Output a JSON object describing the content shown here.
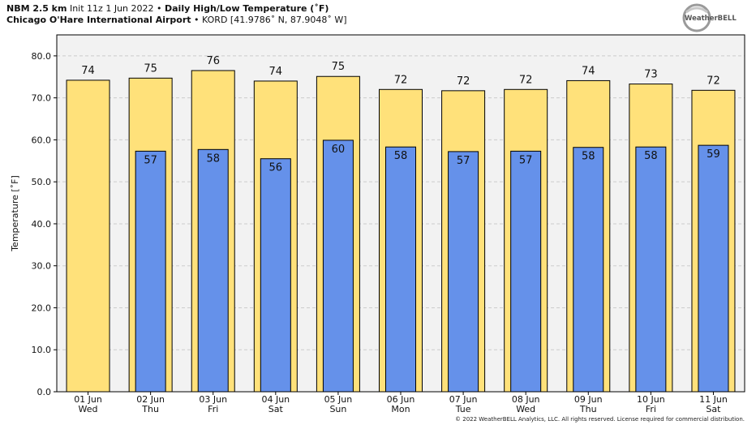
{
  "header": {
    "model": "NBM 2.5 km",
    "init": "Init 11z 1 Jun 2022",
    "bullet": "•",
    "product": "Daily High/Low Temperature (˚F)",
    "station": "Chicago O'Hare International Airport",
    "station_code": "KORD [41.9786˚ N, 87.9048˚ W]"
  },
  "logo": {
    "text": "WeatherBELL"
  },
  "copyright": "© 2022 WeatherBELL Analytics, LLC. All rights reserved. License required for commercial distribution.",
  "colors": {
    "high": "#FFE17A",
    "low": "#6591EA",
    "plot_bg": "#F2F2F2",
    "grid": "#CCCCCC"
  },
  "chart_data": {
    "type": "bar",
    "ylabel": "Temperature [˚F]",
    "ylim": [
      0,
      85
    ],
    "yticks": [
      "0.0",
      "10.0",
      "20.0",
      "30.0",
      "40.0",
      "50.0",
      "60.0",
      "70.0",
      "80.0"
    ],
    "grid": true,
    "categories": [
      [
        "01 Jun",
        "Wed"
      ],
      [
        "02 Jun",
        "Thu"
      ],
      [
        "03 Jun",
        "Fri"
      ],
      [
        "04 Jun",
        "Sat"
      ],
      [
        "05 Jun",
        "Sun"
      ],
      [
        "06 Jun",
        "Mon"
      ],
      [
        "07 Jun",
        "Tue"
      ],
      [
        "08 Jun",
        "Wed"
      ],
      [
        "09 Jun",
        "Thu"
      ],
      [
        "10 Jun",
        "Fri"
      ],
      [
        "11 Jun",
        "Sat"
      ]
    ],
    "high": [
      74.2,
      74.7,
      76.5,
      74.0,
      75.1,
      72.0,
      71.7,
      72.0,
      74.1,
      73.3,
      71.8
    ],
    "high_labels": [
      "74",
      "75",
      "76",
      "74",
      "75",
      "72",
      "72",
      "72",
      "74",
      "73",
      "72"
    ],
    "low": [
      null,
      57.3,
      57.7,
      55.5,
      59.9,
      58.3,
      57.2,
      57.3,
      58.2,
      58.3,
      58.7
    ],
    "low_labels": [
      "",
      "57",
      "58",
      "56",
      "60",
      "58",
      "57",
      "57",
      "58",
      "58",
      "59"
    ]
  }
}
